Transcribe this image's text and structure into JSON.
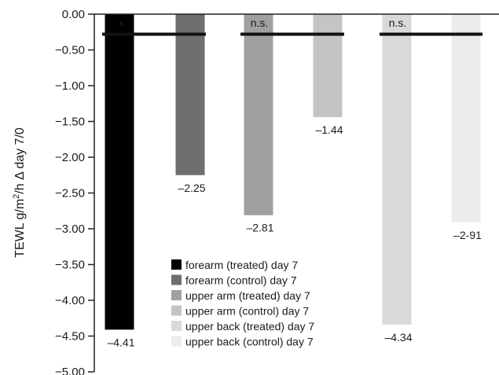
{
  "chart_data": {
    "type": "bar",
    "title": "",
    "ylabel_parts": [
      "TEWL g/m",
      "2",
      "/h Δ day 7/0"
    ],
    "ylim": [
      -5.0,
      0.0
    ],
    "yticks": [
      "0.00",
      "−0.50",
      "−1.00",
      "−1.50",
      "−2.00",
      "−2.50",
      "−3.00",
      "−3.50",
      "−4.00",
      "−4.50",
      "−5.00"
    ],
    "grid": false,
    "legend_placement": "bottom-center",
    "series": [
      {
        "name": "forearm (treated) day 7",
        "value": -4.41,
        "label": "–4.41",
        "color": "#000000"
      },
      {
        "name": "forearm (control) day 7",
        "value": -2.25,
        "label": "–2.25",
        "color": "#6e6e6e"
      },
      {
        "name": "upper arm (treated) day 7",
        "value": -2.81,
        "label": "–2.81",
        "color": "#a0a0a0"
      },
      {
        "name": "upper arm (control) day 7",
        "value": -1.44,
        "label": "–1.44",
        "color": "#c4c4c4"
      },
      {
        "name": "upper back (treated) day 7",
        "value": -4.34,
        "label": "–4.34",
        "color": "#d9d9d9"
      },
      {
        "name": "upper back (control) day 7",
        "value": -2.91,
        "label": "–2-91",
        "color": "#ececec"
      }
    ],
    "comparisons": [
      {
        "pair": [
          "forearm (treated) day 7",
          "forearm (control) day 7"
        ],
        "label": "*"
      },
      {
        "pair": [
          "upper arm (treated) day 7",
          "upper arm (control) day 7"
        ],
        "label": "n.s."
      },
      {
        "pair": [
          "upper back (treated) day 7",
          "upper back (control) day 7"
        ],
        "label": "n.s."
      }
    ]
  }
}
